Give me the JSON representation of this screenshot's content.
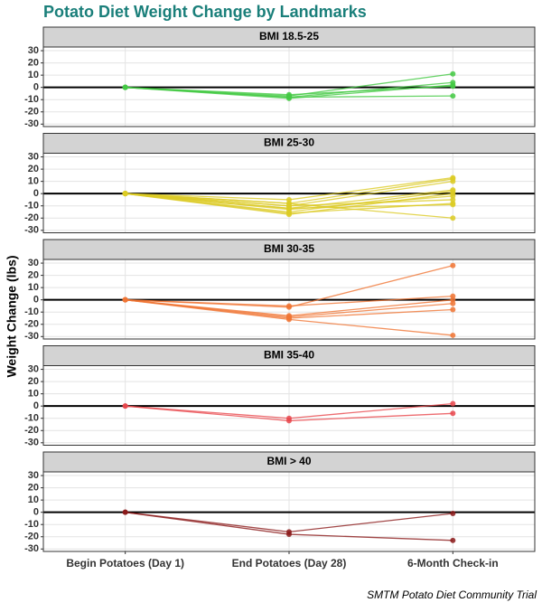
{
  "title": "Potato Diet Weight Change by Landmarks",
  "y_label": "Weight Change (lbs)",
  "caption": "SMTM Potato Diet Community Trial",
  "chart_data": [
    {
      "type": "line",
      "title": "BMI 18.5-25",
      "color": "#44c944",
      "categories": [
        "Begin Potatoes (Day 1)",
        "End Potatoes (Day 28)",
        "6-Month Check-in"
      ],
      "series": [
        {
          "values": [
            0,
            -7,
            11
          ]
        },
        {
          "values": [
            0,
            -8,
            4
          ]
        },
        {
          "values": [
            0,
            -9,
            2
          ]
        },
        {
          "values": [
            0,
            -8,
            -7
          ]
        },
        {
          "values": [
            0,
            -6,
            1
          ]
        }
      ],
      "ylim": [
        -32,
        33
      ],
      "yticks": [
        -30,
        -20,
        -10,
        0,
        10,
        20,
        30
      ],
      "hline": 0,
      "grid": true
    },
    {
      "type": "line",
      "title": "BMI 25-30",
      "color": "#dccb25",
      "categories": [
        "Begin Potatoes (Day 1)",
        "End Potatoes (Day 28)",
        "6-Month Check-in"
      ],
      "series": [
        {
          "values": [
            0,
            -5,
            13
          ]
        },
        {
          "values": [
            0,
            -8,
            12
          ]
        },
        {
          "values": [
            0,
            -10,
            10
          ]
        },
        {
          "values": [
            0,
            -12,
            3
          ]
        },
        {
          "values": [
            0,
            -15,
            2
          ]
        },
        {
          "values": [
            0,
            -17,
            0
          ]
        },
        {
          "values": [
            0,
            -13,
            -2
          ]
        },
        {
          "values": [
            0,
            -10,
            -5
          ]
        },
        {
          "values": [
            0,
            -16,
            -8
          ]
        },
        {
          "values": [
            0,
            -12,
            -9
          ]
        },
        {
          "values": [
            0,
            -8,
            -20
          ]
        }
      ],
      "ylim": [
        -32,
        33
      ],
      "yticks": [
        -30,
        -20,
        -10,
        0,
        10,
        20,
        30
      ],
      "hline": 0,
      "grid": true
    },
    {
      "type": "line",
      "title": "BMI 30-35",
      "color": "#f07535",
      "categories": [
        "Begin Potatoes (Day 1)",
        "End Potatoes (Day 28)",
        "6-Month Check-in"
      ],
      "series": [
        {
          "values": [
            0,
            -6,
            28
          ]
        },
        {
          "values": [
            0,
            -5,
            3
          ]
        },
        {
          "values": [
            0,
            -13,
            0
          ]
        },
        {
          "values": [
            0,
            -14,
            -3
          ]
        },
        {
          "values": [
            0,
            -15,
            -8
          ]
        },
        {
          "values": [
            0,
            -16,
            -29
          ]
        }
      ],
      "ylim": [
        -32,
        33
      ],
      "yticks": [
        -30,
        -20,
        -10,
        0,
        10,
        20,
        30
      ],
      "hline": 0,
      "grid": true
    },
    {
      "type": "line",
      "title": "BMI 35-40",
      "color": "#e8474c",
      "categories": [
        "Begin Potatoes (Day 1)",
        "End Potatoes (Day 28)",
        "6-Month Check-in"
      ],
      "series": [
        {
          "values": [
            0,
            -10,
            2
          ]
        },
        {
          "values": [
            0,
            -12,
            -6
          ]
        }
      ],
      "ylim": [
        -32,
        33
      ],
      "yticks": [
        -30,
        -20,
        -10,
        0,
        10,
        20,
        30
      ],
      "hline": 0,
      "grid": true
    },
    {
      "type": "line",
      "title": "BMI > 40",
      "color": "#8b1a1a",
      "categories": [
        "Begin Potatoes (Day 1)",
        "End Potatoes (Day 28)",
        "6-Month Check-in"
      ],
      "series": [
        {
          "values": [
            0,
            -16,
            -1
          ]
        },
        {
          "values": [
            0,
            -18,
            -23
          ]
        }
      ],
      "ylim": [
        -32,
        33
      ],
      "yticks": [
        -30,
        -20,
        -10,
        0,
        10,
        20,
        30
      ],
      "hline": 0,
      "grid": true
    }
  ]
}
